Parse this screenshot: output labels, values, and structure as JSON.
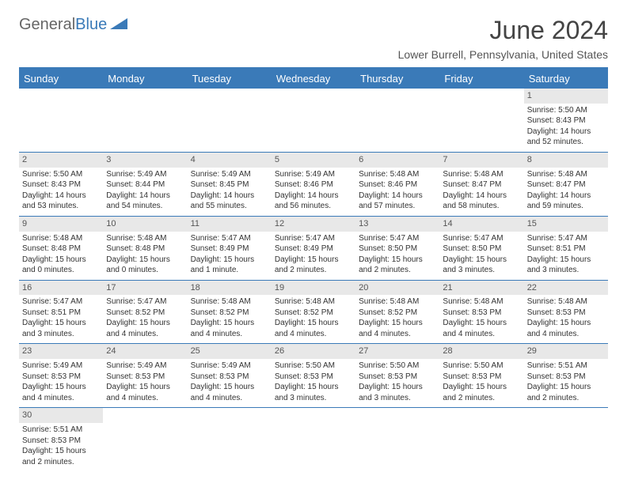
{
  "brand": {
    "part1": "General",
    "part2": "Blue"
  },
  "title": "June 2024",
  "location": "Lower Burrell, Pennsylvania, United States",
  "days": [
    "Sunday",
    "Monday",
    "Tuesday",
    "Wednesday",
    "Thursday",
    "Friday",
    "Saturday"
  ],
  "colors": {
    "accent": "#3a7ab8",
    "dayhdr": "#e8e8e8"
  },
  "cells": [
    {
      "n": "1",
      "r": "5:50 AM",
      "s": "8:43 PM",
      "d": "14 hours and 52 minutes."
    },
    {
      "n": "2",
      "r": "5:50 AM",
      "s": "8:43 PM",
      "d": "14 hours and 53 minutes."
    },
    {
      "n": "3",
      "r": "5:49 AM",
      "s": "8:44 PM",
      "d": "14 hours and 54 minutes."
    },
    {
      "n": "4",
      "r": "5:49 AM",
      "s": "8:45 PM",
      "d": "14 hours and 55 minutes."
    },
    {
      "n": "5",
      "r": "5:49 AM",
      "s": "8:46 PM",
      "d": "14 hours and 56 minutes."
    },
    {
      "n": "6",
      "r": "5:48 AM",
      "s": "8:46 PM",
      "d": "14 hours and 57 minutes."
    },
    {
      "n": "7",
      "r": "5:48 AM",
      "s": "8:47 PM",
      "d": "14 hours and 58 minutes."
    },
    {
      "n": "8",
      "r": "5:48 AM",
      "s": "8:47 PM",
      "d": "14 hours and 59 minutes."
    },
    {
      "n": "9",
      "r": "5:48 AM",
      "s": "8:48 PM",
      "d": "15 hours and 0 minutes."
    },
    {
      "n": "10",
      "r": "5:48 AM",
      "s": "8:48 PM",
      "d": "15 hours and 0 minutes."
    },
    {
      "n": "11",
      "r": "5:47 AM",
      "s": "8:49 PM",
      "d": "15 hours and 1 minute."
    },
    {
      "n": "12",
      "r": "5:47 AM",
      "s": "8:49 PM",
      "d": "15 hours and 2 minutes."
    },
    {
      "n": "13",
      "r": "5:47 AM",
      "s": "8:50 PM",
      "d": "15 hours and 2 minutes."
    },
    {
      "n": "14",
      "r": "5:47 AM",
      "s": "8:50 PM",
      "d": "15 hours and 3 minutes."
    },
    {
      "n": "15",
      "r": "5:47 AM",
      "s": "8:51 PM",
      "d": "15 hours and 3 minutes."
    },
    {
      "n": "16",
      "r": "5:47 AM",
      "s": "8:51 PM",
      "d": "15 hours and 3 minutes."
    },
    {
      "n": "17",
      "r": "5:47 AM",
      "s": "8:52 PM",
      "d": "15 hours and 4 minutes."
    },
    {
      "n": "18",
      "r": "5:48 AM",
      "s": "8:52 PM",
      "d": "15 hours and 4 minutes."
    },
    {
      "n": "19",
      "r": "5:48 AM",
      "s": "8:52 PM",
      "d": "15 hours and 4 minutes."
    },
    {
      "n": "20",
      "r": "5:48 AM",
      "s": "8:52 PM",
      "d": "15 hours and 4 minutes."
    },
    {
      "n": "21",
      "r": "5:48 AM",
      "s": "8:53 PM",
      "d": "15 hours and 4 minutes."
    },
    {
      "n": "22",
      "r": "5:48 AM",
      "s": "8:53 PM",
      "d": "15 hours and 4 minutes."
    },
    {
      "n": "23",
      "r": "5:49 AM",
      "s": "8:53 PM",
      "d": "15 hours and 4 minutes."
    },
    {
      "n": "24",
      "r": "5:49 AM",
      "s": "8:53 PM",
      "d": "15 hours and 4 minutes."
    },
    {
      "n": "25",
      "r": "5:49 AM",
      "s": "8:53 PM",
      "d": "15 hours and 4 minutes."
    },
    {
      "n": "26",
      "r": "5:50 AM",
      "s": "8:53 PM",
      "d": "15 hours and 3 minutes."
    },
    {
      "n": "27",
      "r": "5:50 AM",
      "s": "8:53 PM",
      "d": "15 hours and 3 minutes."
    },
    {
      "n": "28",
      "r": "5:50 AM",
      "s": "8:53 PM",
      "d": "15 hours and 2 minutes."
    },
    {
      "n": "29",
      "r": "5:51 AM",
      "s": "8:53 PM",
      "d": "15 hours and 2 minutes."
    },
    {
      "n": "30",
      "r": "5:51 AM",
      "s": "8:53 PM",
      "d": "15 hours and 2 minutes."
    }
  ],
  "labels": {
    "sunrise": "Sunrise: ",
    "sunset": "Sunset: ",
    "daylight": "Daylight: "
  }
}
